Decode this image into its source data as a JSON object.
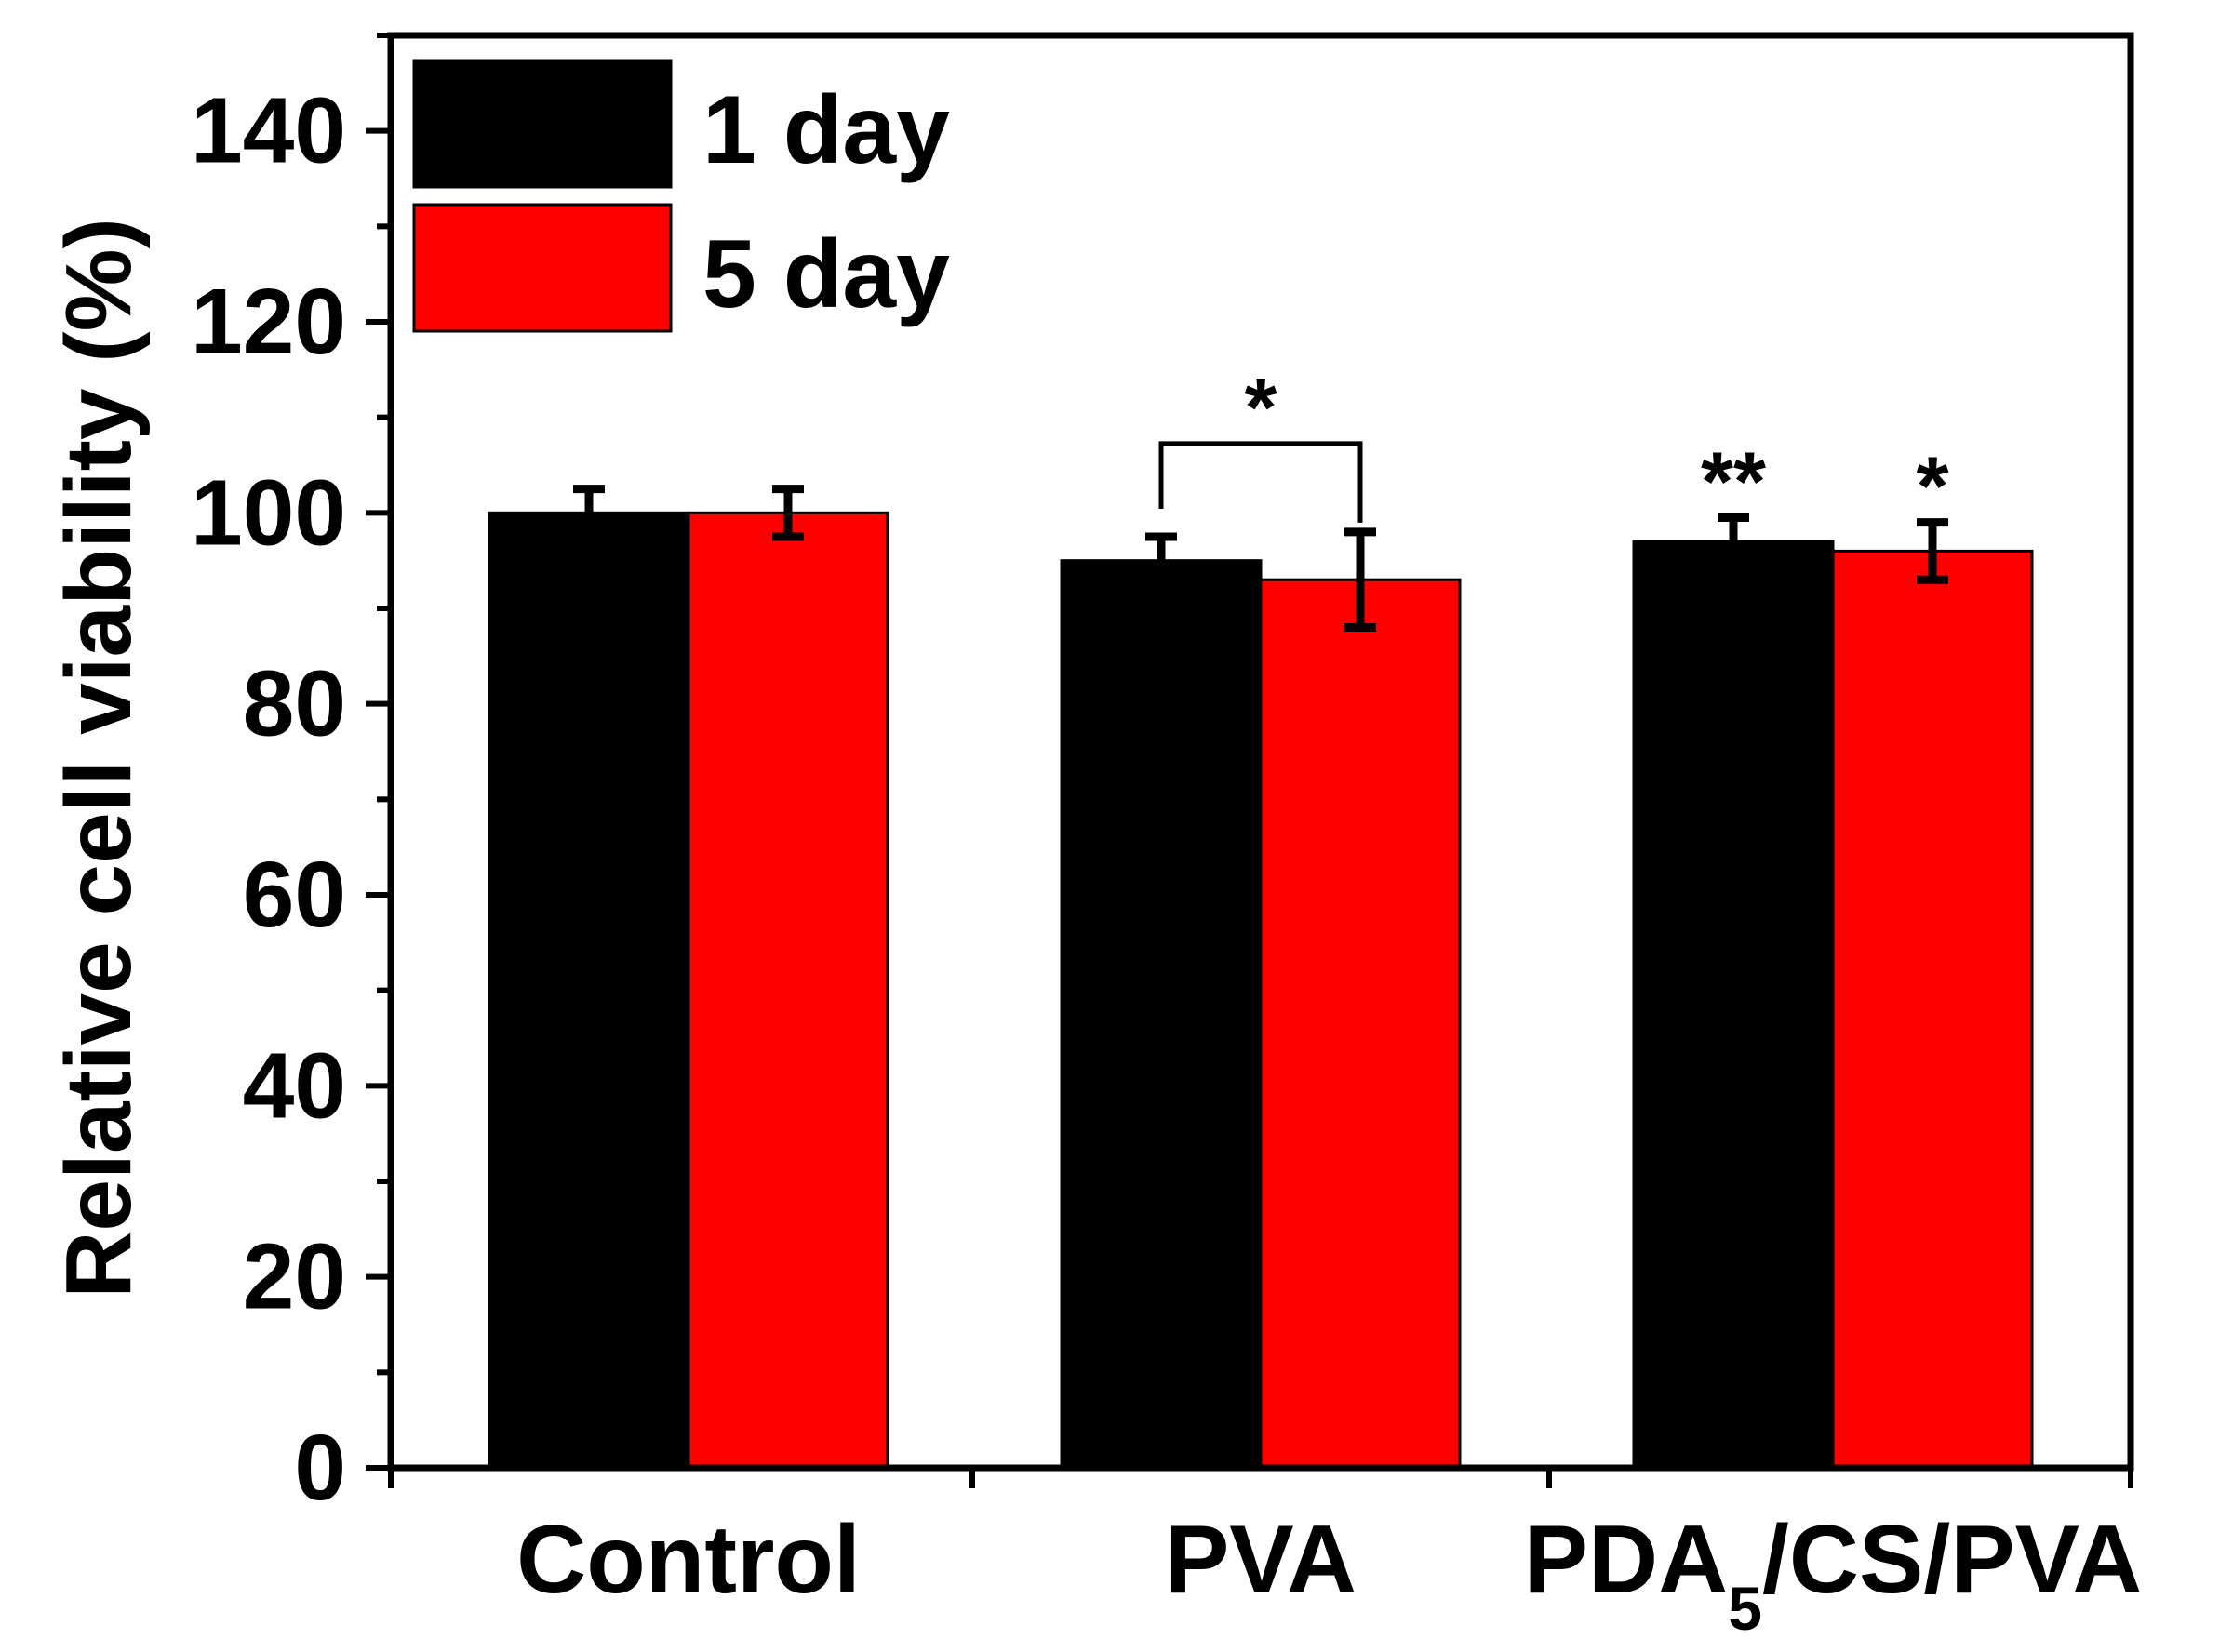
{
  "chart_data": {
    "type": "bar",
    "title": "",
    "xlabel": "",
    "ylabel": "Relative cell viability (%)",
    "ylim": [
      0,
      150
    ],
    "y_ticks": [
      0,
      20,
      40,
      60,
      80,
      100,
      120,
      140
    ],
    "grid": false,
    "legend_position": "top-left",
    "categories": [
      {
        "main": "Control",
        "sub": "",
        "rest": ""
      },
      {
        "main": "PVA",
        "sub": "",
        "rest": ""
      },
      {
        "main": "PDA",
        "sub": "5",
        "rest": "/CS/PVA"
      }
    ],
    "series": [
      {
        "name": "1 day",
        "color": "#000000",
        "values": [
          100,
          95,
          97
        ],
        "errors": [
          2.5,
          2.5,
          2.5
        ]
      },
      {
        "name": "5 day",
        "color": "#ff0000",
        "values": [
          100,
          93,
          96
        ],
        "errors": [
          2.5,
          5,
          3
        ]
      }
    ],
    "annotations": [
      {
        "text": "*",
        "type": "bracket",
        "category": 1,
        "series": [
          0,
          1
        ]
      },
      {
        "text": "**",
        "type": "above",
        "category": 2,
        "series": 0
      },
      {
        "text": "*",
        "type": "above",
        "category": 2,
        "series": 1
      }
    ]
  }
}
